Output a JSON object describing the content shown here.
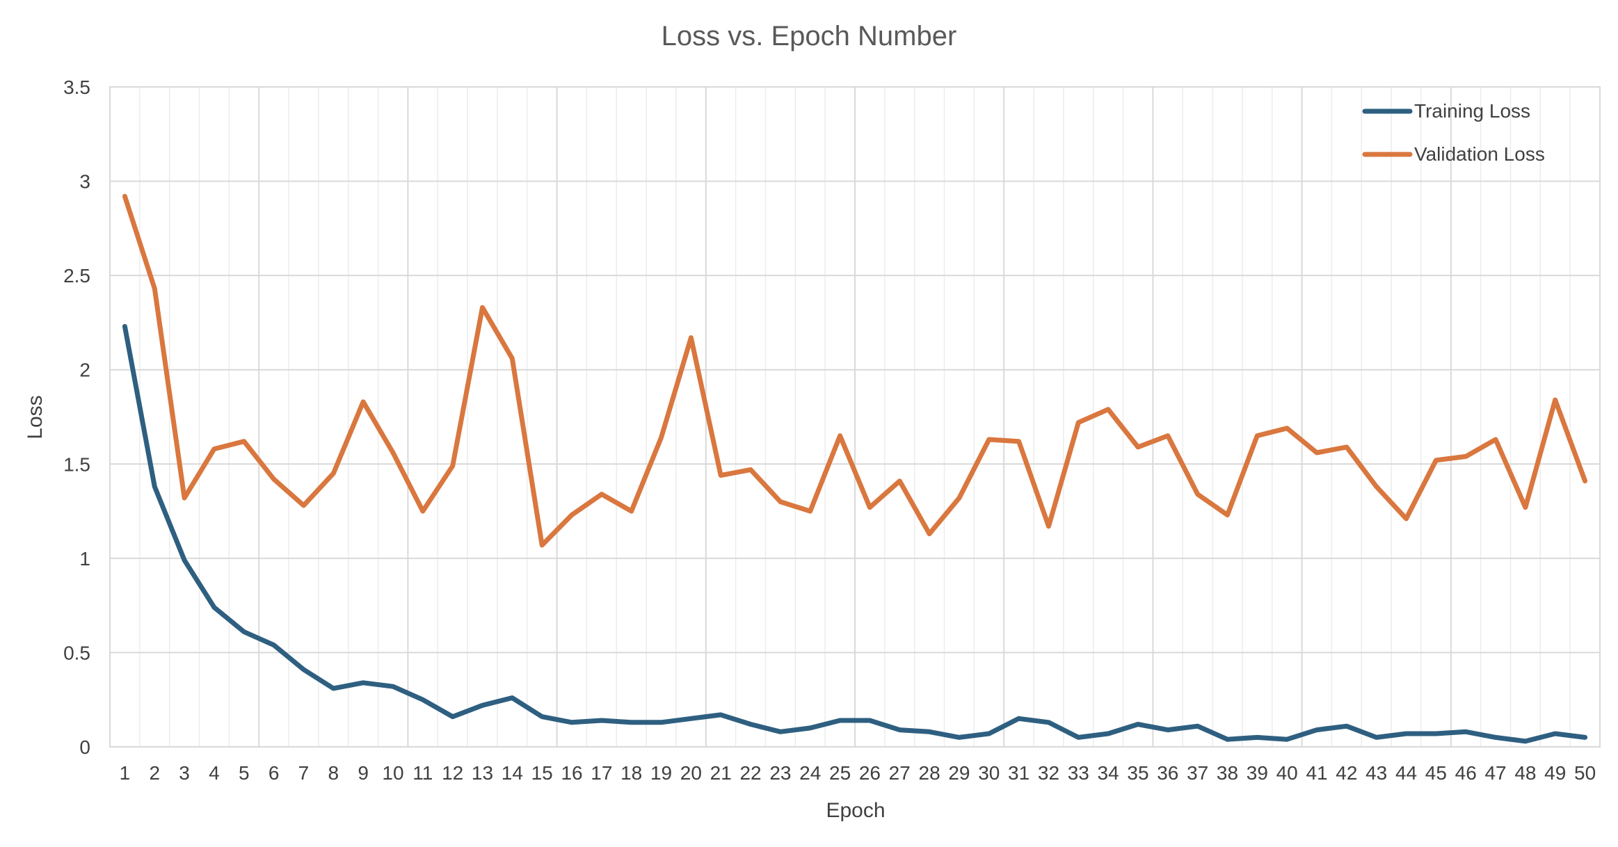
{
  "chart_data": {
    "type": "line",
    "title": "Loss vs. Epoch Number",
    "xlabel": "Epoch",
    "ylabel": "Loss",
    "ylim": [
      0,
      3.5
    ],
    "yticks": [
      "0",
      "0.5",
      "1",
      "1.5",
      "2",
      "2.5",
      "3",
      "3.5"
    ],
    "yticks_values": [
      0,
      0.5,
      1,
      1.5,
      2,
      2.5,
      3,
      3.5
    ],
    "grid": true,
    "legend_position": "top-right",
    "x": [
      1,
      2,
      3,
      4,
      5,
      6,
      7,
      8,
      9,
      10,
      11,
      12,
      13,
      14,
      15,
      16,
      17,
      18,
      19,
      20,
      21,
      22,
      23,
      24,
      25,
      26,
      27,
      28,
      29,
      30,
      31,
      32,
      33,
      34,
      35,
      36,
      37,
      38,
      39,
      40,
      41,
      42,
      43,
      44,
      45,
      46,
      47,
      48,
      49,
      50
    ],
    "series": [
      {
        "name": "Training Loss",
        "color": "#2e5f80",
        "values": [
          2.23,
          1.38,
          0.99,
          0.74,
          0.61,
          0.54,
          0.41,
          0.31,
          0.34,
          0.32,
          0.25,
          0.16,
          0.22,
          0.26,
          0.16,
          0.13,
          0.14,
          0.13,
          0.13,
          0.15,
          0.17,
          0.12,
          0.08,
          0.1,
          0.14,
          0.14,
          0.09,
          0.08,
          0.05,
          0.07,
          0.15,
          0.13,
          0.05,
          0.07,
          0.12,
          0.09,
          0.11,
          0.04,
          0.05,
          0.04,
          0.09,
          0.11,
          0.05,
          0.07,
          0.07,
          0.08,
          0.05,
          0.03,
          0.07,
          0.05
        ]
      },
      {
        "name": "Validation Loss",
        "color": "#d9773f",
        "values": [
          2.92,
          2.43,
          1.32,
          1.58,
          1.62,
          1.42,
          1.28,
          1.45,
          1.83,
          1.56,
          1.25,
          1.49,
          2.33,
          2.06,
          1.07,
          1.23,
          1.34,
          1.25,
          1.64,
          2.17,
          1.44,
          1.47,
          1.3,
          1.25,
          1.65,
          1.27,
          1.41,
          1.13,
          1.32,
          1.63,
          1.62,
          1.17,
          1.72,
          1.79,
          1.59,
          1.65,
          1.34,
          1.23,
          1.65,
          1.69,
          1.56,
          1.59,
          1.38,
          1.21,
          1.52,
          1.54,
          1.63,
          1.27,
          1.84,
          1.41
        ]
      }
    ]
  }
}
